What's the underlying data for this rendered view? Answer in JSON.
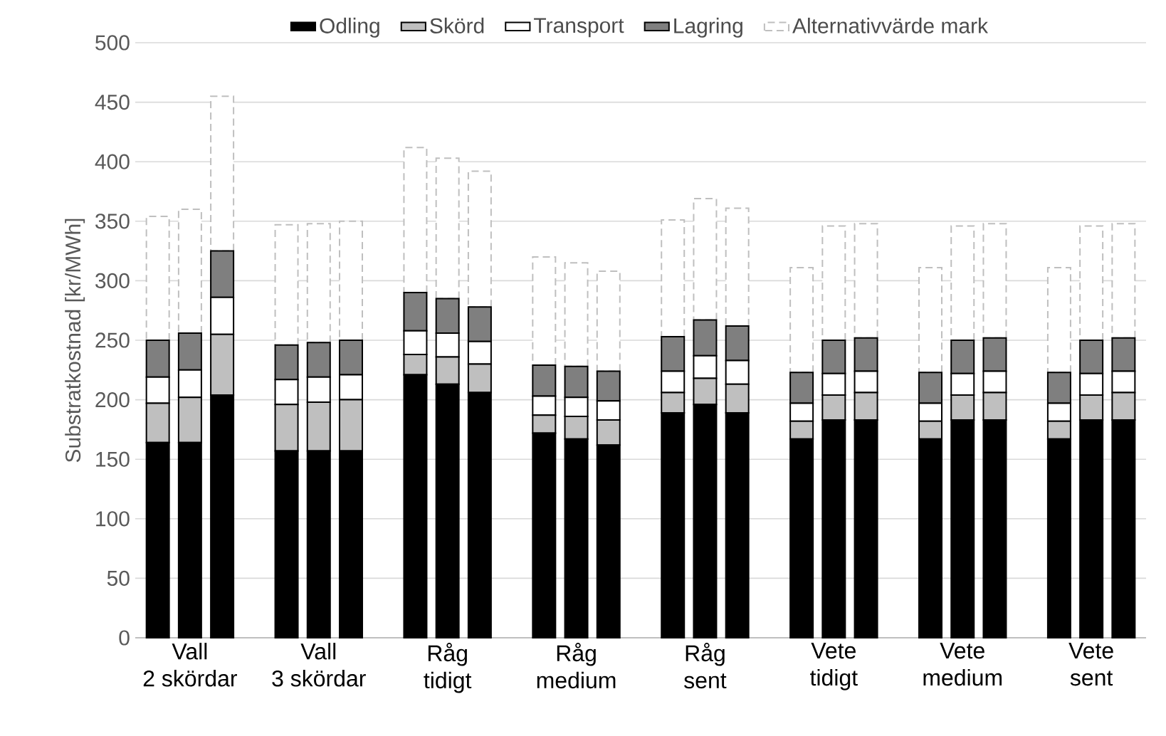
{
  "chart_data": {
    "type": "bar",
    "stacked": true,
    "ylabel": "Substratkostnad [kr/MWh]",
    "categories": [
      null,
      "Vall 2 skördar",
      null,
      null,
      null,
      "Vall 3 skördar",
      null,
      null,
      null,
      "Råg tidigt",
      null,
      null,
      null,
      "Råg medium",
      null,
      null,
      null,
      "Råg sent",
      null,
      null,
      null,
      "Vete tidigt",
      null,
      null,
      null,
      "Vete medium",
      null,
      null,
      null,
      "Vete sent",
      null
    ],
    "series": [
      {
        "name": "Odling",
        "color": "#000000",
        "values": [
          164,
          164,
          204,
          null,
          157,
          157,
          157,
          null,
          221,
          213,
          206,
          null,
          172,
          167,
          162,
          null,
          189,
          196,
          189,
          null,
          167,
          183,
          183,
          null,
          167,
          183,
          183,
          null,
          167,
          183,
          183
        ]
      },
      {
        "name": "Skörd",
        "color": "#bfbfbf",
        "values": [
          33,
          38,
          51,
          null,
          39,
          41,
          43,
          null,
          17,
          23,
          24,
          null,
          15,
          19,
          21,
          null,
          17,
          22,
          24,
          null,
          15,
          21,
          23,
          null,
          15,
          21,
          23,
          null,
          15,
          21,
          23
        ]
      },
      {
        "name": "Transport",
        "color": "#ffffff",
        "values": [
          22,
          23,
          31,
          null,
          21,
          21,
          21,
          null,
          20,
          20,
          19,
          null,
          16,
          16,
          16,
          null,
          18,
          19,
          20,
          null,
          15,
          18,
          18,
          null,
          15,
          18,
          18,
          null,
          15,
          18,
          18
        ]
      },
      {
        "name": "Lagring",
        "color": "#7f7f7f",
        "values": [
          31,
          31,
          39,
          null,
          29,
          29,
          29,
          null,
          32,
          29,
          29,
          null,
          26,
          26,
          25,
          null,
          29,
          30,
          29,
          null,
          26,
          28,
          28,
          null,
          26,
          28,
          28,
          null,
          26,
          28,
          28
        ]
      },
      {
        "name": "Alternativvärde mark",
        "color": "#bfbfbf",
        "line_style": "dashed",
        "values": [
          104,
          104,
          130,
          null,
          101,
          100,
          100,
          null,
          122,
          118,
          114,
          null,
          91,
          87,
          84,
          null,
          98,
          102,
          99,
          null,
          88,
          96,
          96,
          null,
          88,
          96,
          96,
          null,
          88,
          96,
          96
        ]
      }
    ],
    "ylim": [
      0,
      500
    ],
    "yticks": [
      0,
      50,
      100,
      150,
      200,
      250,
      300,
      350,
      400,
      450,
      500
    ],
    "grid": "y",
    "legend": "top"
  }
}
